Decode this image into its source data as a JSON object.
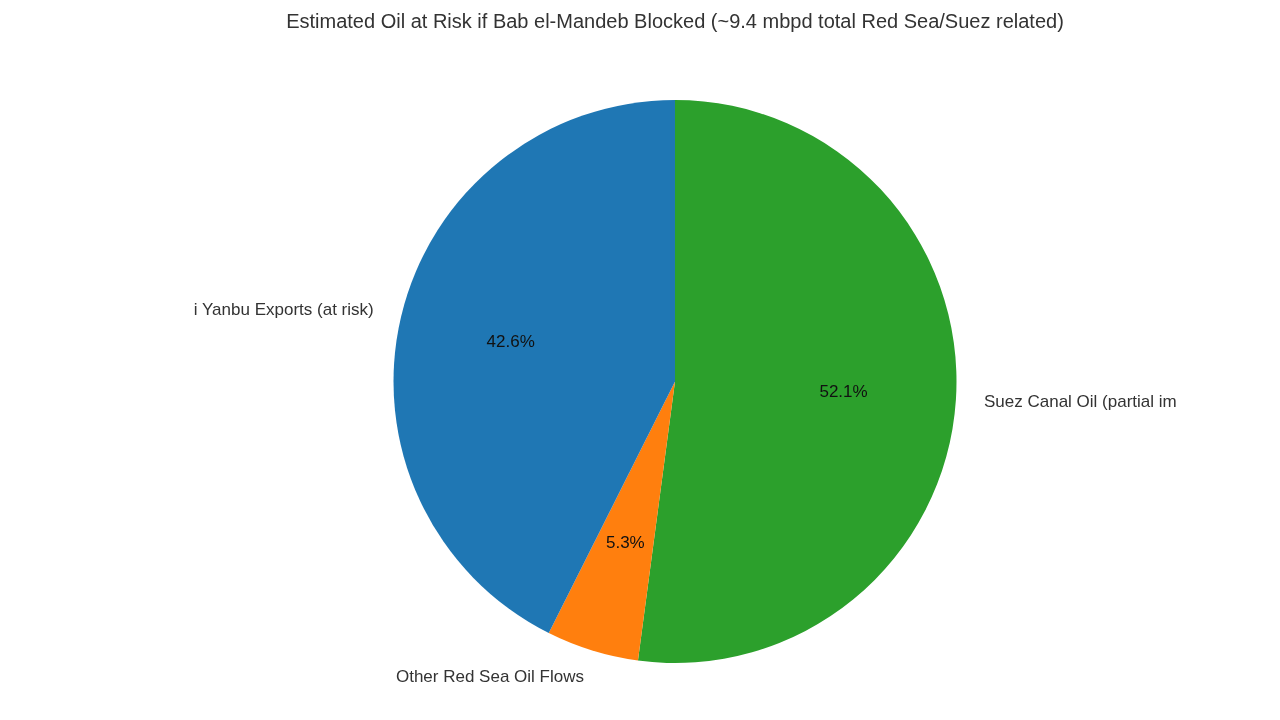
{
  "chart_data": {
    "type": "pie",
    "title": "Estimated Oil at Risk if Bab el-Mandeb Blocked (~9.4 mbpd total Red Sea/Suez related)",
    "categories": [
      "Suez Canal Oil (partial im",
      "Other Red Sea Oil Flows",
      "i Yanbu Exports (at risk)"
    ],
    "values": [
      52.1,
      5.3,
      42.6
    ],
    "colors": [
      "#2ca02c",
      "#ff7f0e",
      "#1f77b4"
    ],
    "value_labels": [
      "52.1%",
      "5.3%",
      "42.6%"
    ],
    "legend": false
  }
}
